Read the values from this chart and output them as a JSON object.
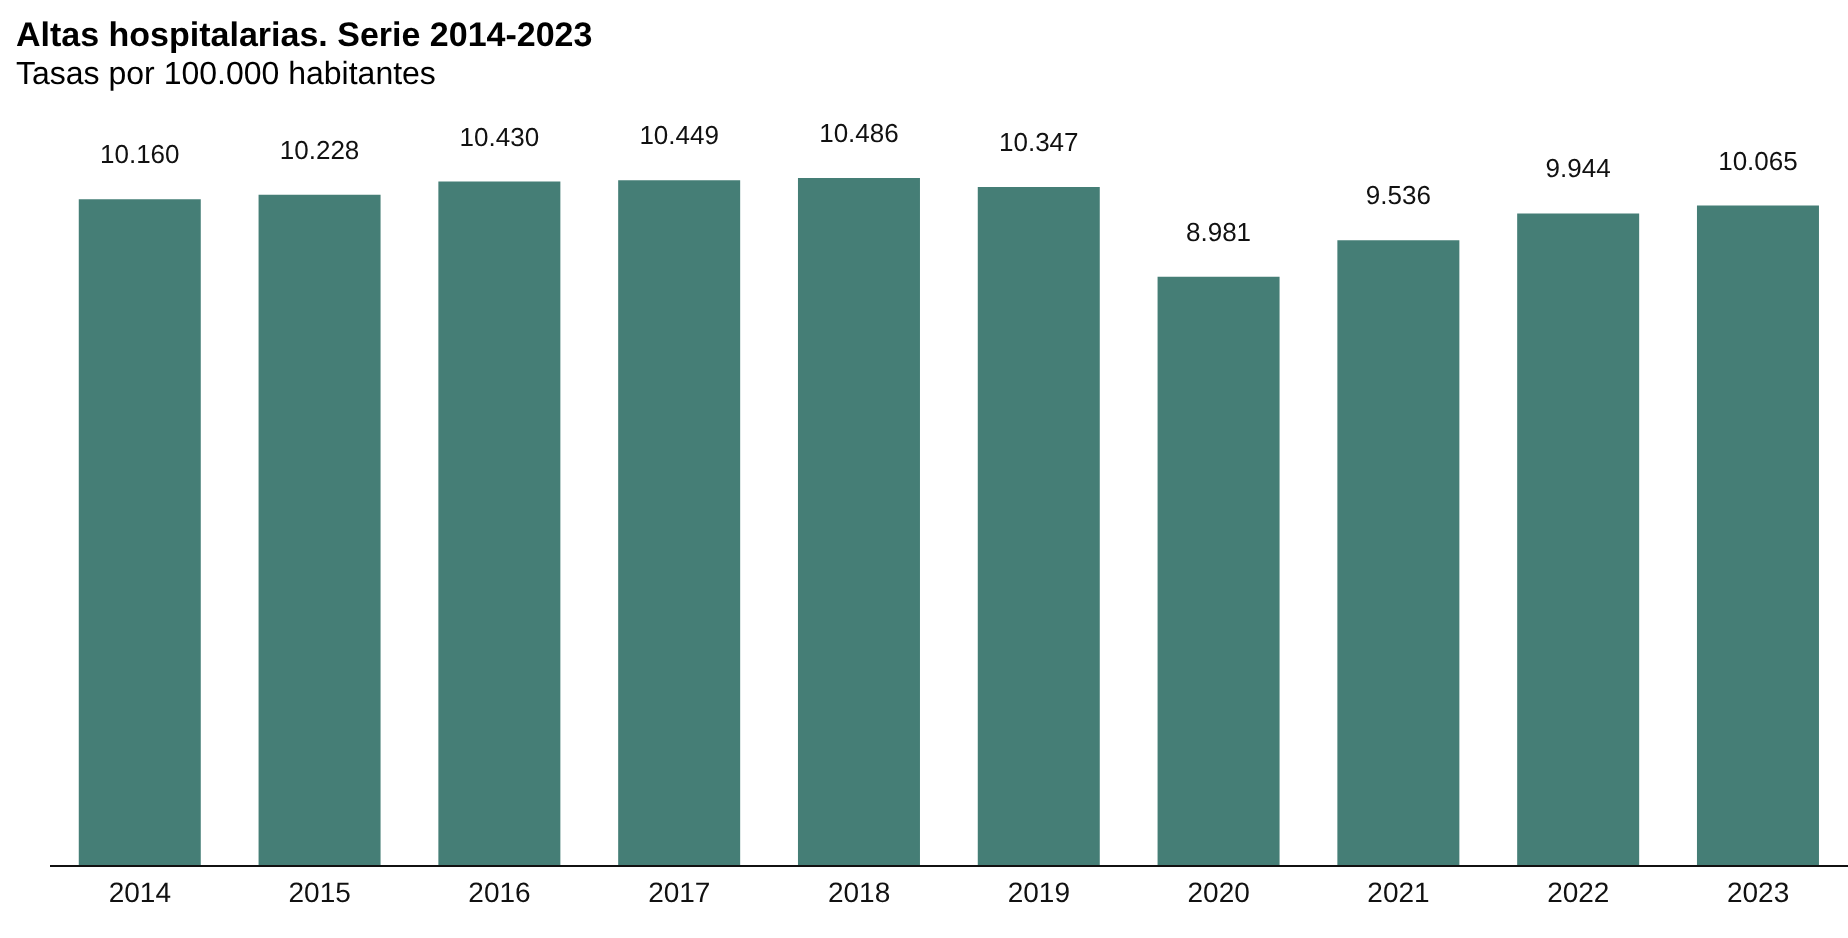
{
  "chart_data": {
    "type": "bar",
    "title": "Altas hospitalarias. Serie 2014-2023",
    "subtitle": "Tasas por 100.000 habitantes",
    "categories": [
      "2014",
      "2015",
      "2016",
      "2017",
      "2018",
      "2019",
      "2020",
      "2021",
      "2022",
      "2023"
    ],
    "values": [
      10160,
      10228,
      10430,
      10449,
      10486,
      10347,
      8981,
      9536,
      9944,
      10065
    ],
    "value_labels": [
      "10.160",
      "10.228",
      "10.430",
      "10.449",
      "10.486",
      "10.347",
      "8.981",
      "9.536",
      "9.944",
      "10.065"
    ],
    "color": "#457e76",
    "grid": false,
    "legend": false
  }
}
